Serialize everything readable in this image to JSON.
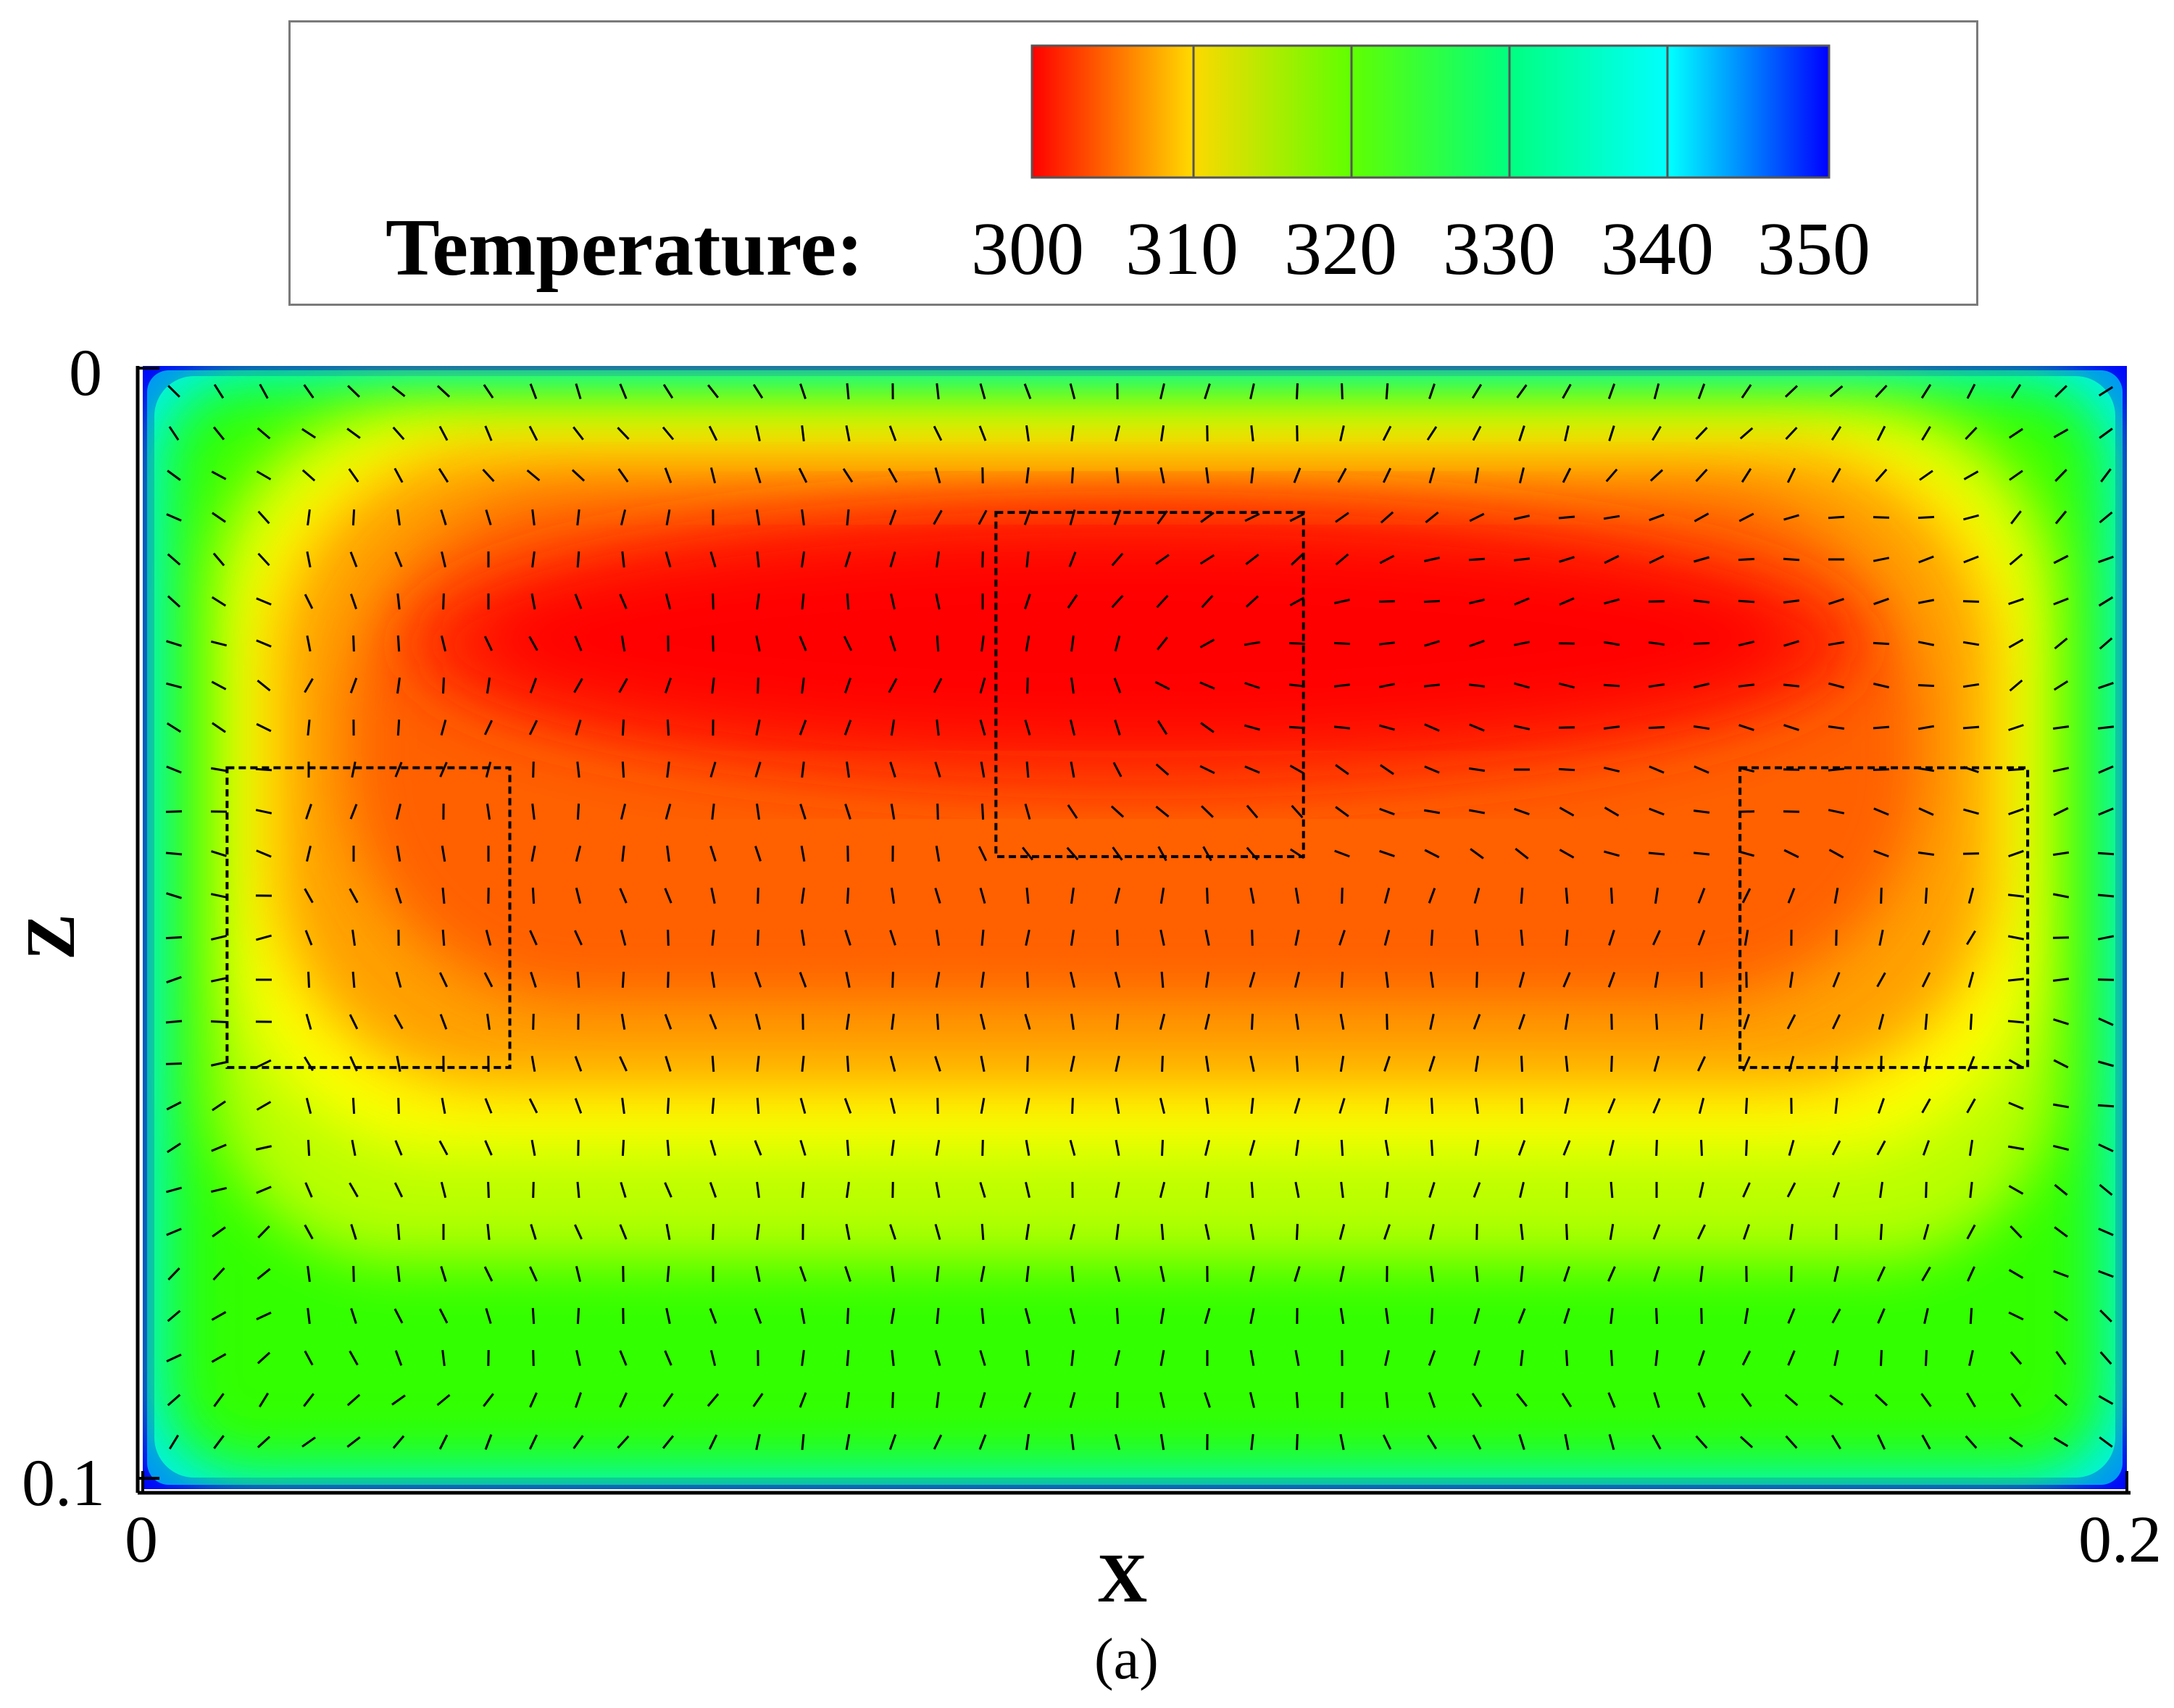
{
  "chart_data": {
    "type": "heatmap",
    "subtype": "temperature contour with velocity vector field",
    "xlabel": "X",
    "ylabel": "Z",
    "xlim": [
      0,
      0.2
    ],
    "ylim": [
      0,
      0.1
    ],
    "y_axis_inverted": true,
    "x_tick_labels": [
      "0",
      "0.2"
    ],
    "y_tick_labels": [
      "0",
      "0.1"
    ],
    "colorbar": {
      "title": "Temperature:",
      "ticks": [
        300,
        310,
        320,
        330,
        340,
        350
      ],
      "colormap": [
        "#ff0000",
        "#ffff00",
        "#00ff00",
        "#00ffff",
        "#0000ff"
      ],
      "orientation": "horizontal",
      "placement": "top"
    },
    "field_description": "hot core (~300) near upper middle, cooling toward walls (~350 at boundary)",
    "vector_field": "short black line segments showing flow direction",
    "highlight_boxes": [
      {
        "x_range": [
          0.0085,
          0.037
        ],
        "z_range": [
          0.036,
          0.063
        ]
      },
      {
        "x_range": [
          0.086,
          0.117
        ],
        "z_range": [
          0.013,
          0.044
        ]
      },
      {
        "x_range": [
          0.161,
          0.19
        ],
        "z_range": [
          0.036,
          0.063
        ]
      }
    ],
    "caption": "(a)"
  },
  "colors": {
    "hot": "#ff0000",
    "warm": "#ffff00",
    "mid": "#00ff00",
    "cool": "#00ffff",
    "cold": "#0000ff"
  }
}
